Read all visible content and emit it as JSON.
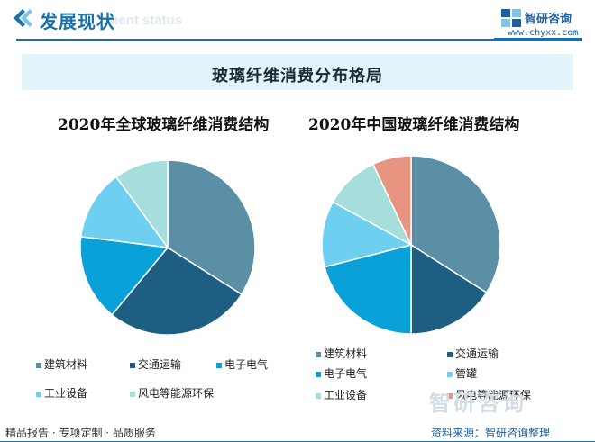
{
  "header": {
    "title": "发展现状",
    "subtitle": "ment status",
    "brand_name": "智研咨询",
    "brand_url": "www.chyxx.com"
  },
  "banner": {
    "title": "玻璃纤维消费分布格局"
  },
  "colors": {
    "building": "#5a8fa6",
    "transport": "#1d5e82",
    "electronics": "#0aa0d8",
    "pipe": "#6fcff1",
    "industrial": "#a6dedb",
    "wind": "#e79480",
    "brand": "#1a6fa8"
  },
  "chart_data": [
    {
      "type": "pie",
      "title": "2020年全球玻璃纤维消费结构",
      "series": [
        {
          "label": "建筑材料",
          "value": 34
        },
        {
          "label": "交通运输",
          "value": 27
        },
        {
          "label": "电子电气",
          "value": 16
        },
        {
          "label": "工业设备",
          "value": 13
        },
        {
          "label": "风电等能源环保",
          "value": 10
        }
      ],
      "legend_position": "bottom"
    },
    {
      "type": "pie",
      "title": "2020年中国玻璃纤维消费结构",
      "series": [
        {
          "label": "建筑材料",
          "value": 34
        },
        {
          "label": "交通运输",
          "value": 16
        },
        {
          "label": "电子电气",
          "value": 21
        },
        {
          "label": "管罐",
          "value": 12
        },
        {
          "label": "工业设备",
          "value": 10
        },
        {
          "label": "风电等能源环保",
          "value": 7
        }
      ],
      "legend_position": "bottom"
    }
  ],
  "footer": {
    "left": "精品报告 · 专项定制 · 品质服务",
    "right": "资料来源：智研咨询整理",
    "watermark": "智研咨询"
  }
}
